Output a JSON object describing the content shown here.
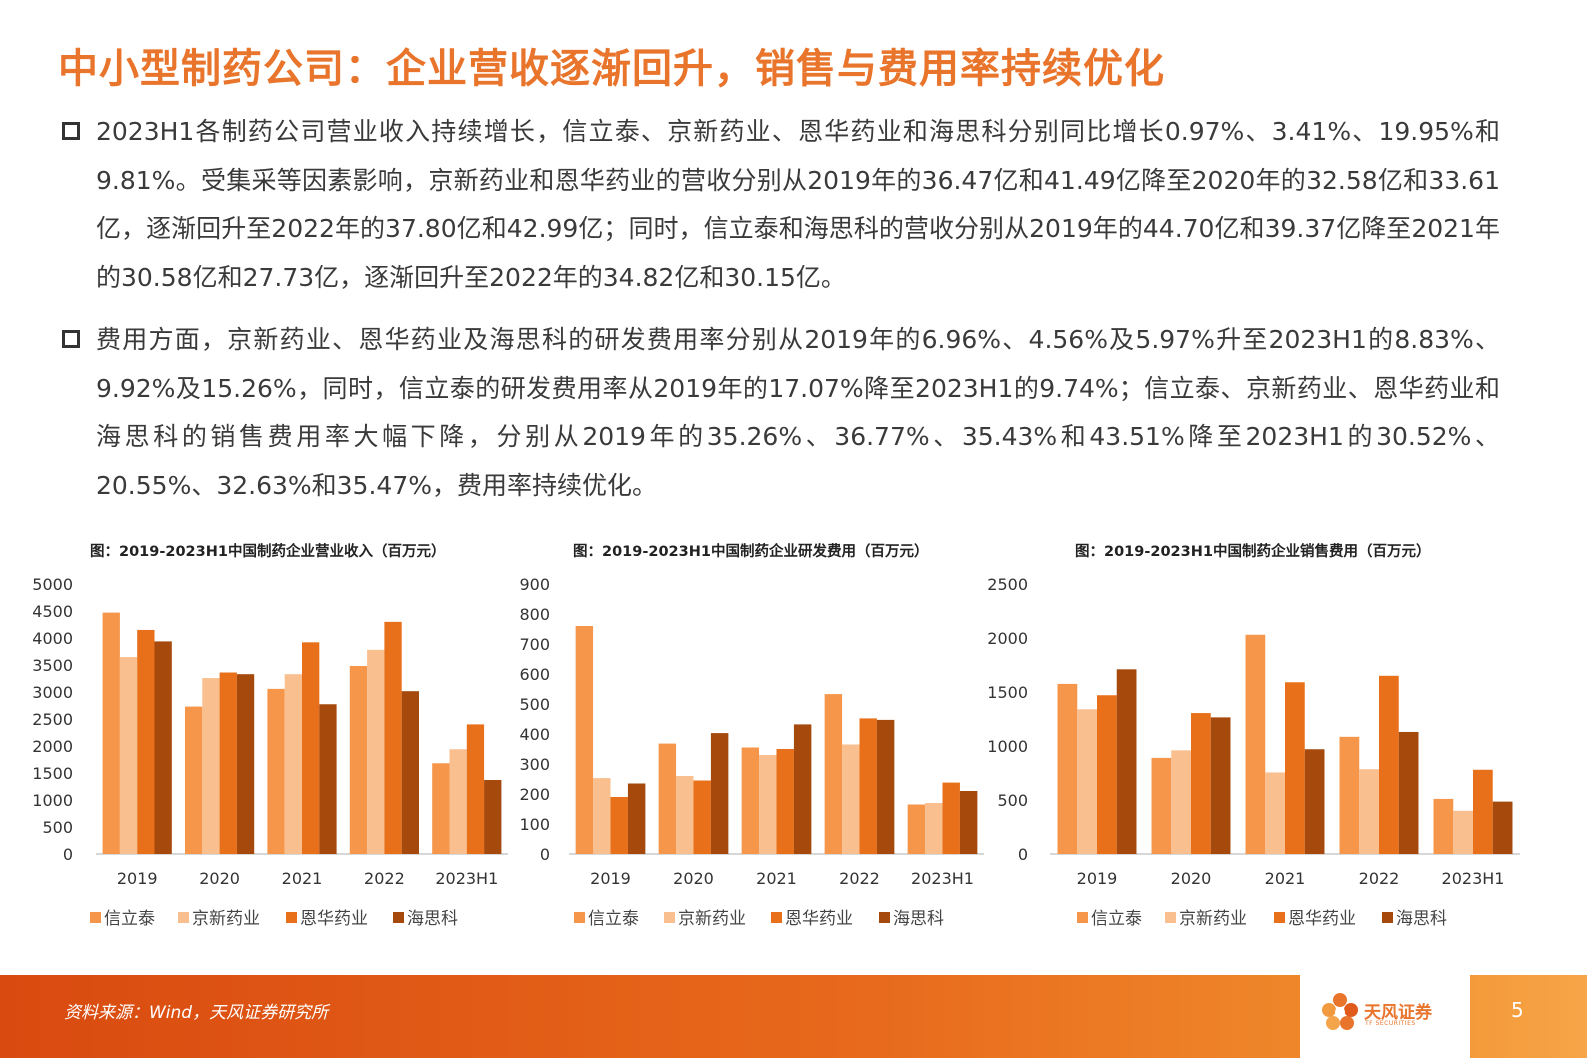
{
  "title": "中小型制药公司：企业营收逐渐回升，销售与费用率持续优化",
  "bullets": [
    "2023H1各制药公司营业收入持续增长，信立泰、京新药业、恩华药业和海思科分别同比增长0.97%、3.41%、19.95%和9.81%。受集采等因素影响，京新药业和恩华药业的营收分别从2019年的36.47亿和41.49亿降至2020年的32.58亿和33.61亿，逐渐回升至2022年的37.80亿和42.99亿；同时，信立泰和海思科的营收分别从2019年的44.70亿和39.37亿降至2021年的30.58亿和27.73亿，逐渐回升至2022年的34.82亿和30.15亿。",
    "费用方面，京新药业、恩华药业及海思科的研发费用率分别从2019年的6.96%、4.56%及5.97%升至2023H1的8.83%、9.92%及15.26%，同时，信立泰的研发费用率从2019年的17.07%降至2023H1的9.74%；信立泰、京新药业、恩华药业和海思科的销售费用率大幅下降，分别从2019年的35.26%、36.77%、35.43%和43.51%降至2023H1的30.52%、20.55%、32.63%和35.47%，费用率持续优化。"
  ],
  "colors": {
    "accent": "#E9742B",
    "series": [
      "#F5964B",
      "#F9BF8F",
      "#E8701A",
      "#A5490D"
    ]
  },
  "chart_data": [
    {
      "type": "bar",
      "title": "图：2019-2023H1中国制药企业营业收入（百万元）",
      "categories": [
        "2019",
        "2020",
        "2021",
        "2022",
        "2023H1"
      ],
      "ylim": [
        0,
        5000
      ],
      "yticks": [
        0,
        500,
        1000,
        1500,
        2000,
        2500,
        3000,
        3500,
        4000,
        4500,
        5000
      ],
      "series": [
        {
          "name": "信立泰",
          "values": [
            4470,
            2730,
            3058,
            3482,
            1680
          ]
        },
        {
          "name": "京新药业",
          "values": [
            3647,
            3258,
            3330,
            3780,
            1940
          ]
        },
        {
          "name": "恩华药业",
          "values": [
            4149,
            3361,
            3920,
            4299,
            2400
          ]
        },
        {
          "name": "海思科",
          "values": [
            3937,
            3330,
            2773,
            3015,
            1370
          ]
        }
      ]
    },
    {
      "type": "bar",
      "title": "图：2019-2023H1中国制药企业研发费用（百万元）",
      "categories": [
        "2019",
        "2020",
        "2021",
        "2022",
        "2023H1"
      ],
      "ylim": [
        0,
        900
      ],
      "yticks": [
        0,
        100,
        200,
        300,
        400,
        500,
        600,
        700,
        800,
        900
      ],
      "series": [
        {
          "name": "信立泰",
          "values": [
            760,
            368,
            355,
            533,
            165
          ]
        },
        {
          "name": "京新药业",
          "values": [
            253,
            260,
            330,
            365,
            170
          ]
        },
        {
          "name": "恩华药业",
          "values": [
            190,
            245,
            350,
            452,
            238
          ]
        },
        {
          "name": "海思科",
          "values": [
            235,
            403,
            432,
            447,
            210
          ]
        }
      ]
    },
    {
      "type": "bar",
      "title": "图：2019-2023H1中国制药企业销售费用（百万元）",
      "categories": [
        "2019",
        "2020",
        "2021",
        "2022",
        "2023H1"
      ],
      "ylim": [
        0,
        2500
      ],
      "yticks": [
        0,
        500,
        1000,
        1500,
        2000,
        2500
      ],
      "series": [
        {
          "name": "信立泰",
          "values": [
            1575,
            890,
            2030,
            1085,
            510
          ]
        },
        {
          "name": "京新药业",
          "values": [
            1340,
            960,
            755,
            785,
            400
          ]
        },
        {
          "name": "恩华药业",
          "values": [
            1470,
            1305,
            1590,
            1650,
            780
          ]
        },
        {
          "name": "海思科",
          "values": [
            1710,
            1265,
            970,
            1130,
            485
          ]
        }
      ]
    }
  ],
  "footer": {
    "source": "资料来源：Wind，天风证券研究所",
    "logo_text": "天风证券",
    "logo_sub": "TF SECURITIES",
    "page": "5"
  }
}
